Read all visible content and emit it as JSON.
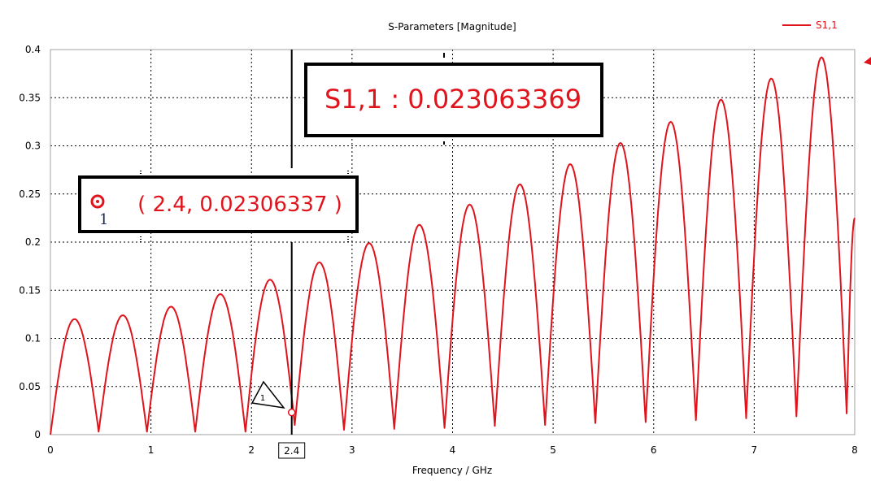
{
  "colors": {
    "series": "#e0141c",
    "axis": "#000000",
    "grid": "#000000",
    "box_border": "#000000",
    "label_text": "#e0141c"
  },
  "chart_data": {
    "type": "line",
    "title": "S-Parameters [Magnitude]",
    "xlabel": "Frequency / GHz",
    "ylabel": "",
    "xlim": [
      0,
      8
    ],
    "ylim": [
      0,
      0.4
    ],
    "xticks": [
      "0",
      "1",
      "2",
      "3",
      "4",
      "5",
      "6",
      "7",
      "8"
    ],
    "yticks": [
      "0",
      "0.05",
      "0.1",
      "0.15",
      "0.2",
      "0.25",
      "0.3",
      "0.35",
      "0.4"
    ],
    "grid": true,
    "legend": {
      "position": "top-right",
      "entries": [
        "S1,1"
      ]
    },
    "series": [
      {
        "name": "S1,1",
        "peaks": [
          {
            "x": 0.25,
            "y": 0.12
          },
          {
            "x": 0.74,
            "y": 0.124
          },
          {
            "x": 1.22,
            "y": 0.133
          },
          {
            "x": 1.71,
            "y": 0.146
          },
          {
            "x": 2.19,
            "y": 0.161
          },
          {
            "x": 2.68,
            "y": 0.179
          },
          {
            "x": 3.17,
            "y": 0.199
          },
          {
            "x": 3.66,
            "y": 0.218
          },
          {
            "x": 4.16,
            "y": 0.239
          },
          {
            "x": 4.66,
            "y": 0.26
          },
          {
            "x": 5.16,
            "y": 0.281
          },
          {
            "x": 5.66,
            "y": 0.303
          },
          {
            "x": 6.16,
            "y": 0.325
          },
          {
            "x": 6.66,
            "y": 0.348
          },
          {
            "x": 7.16,
            "y": 0.37
          },
          {
            "x": 7.66,
            "y": 0.392
          }
        ],
        "nulls": [
          {
            "x": 0.0,
            "y": 0.0
          },
          {
            "x": 0.48,
            "y": 0.003
          },
          {
            "x": 0.96,
            "y": 0.003
          },
          {
            "x": 1.44,
            "y": 0.003
          },
          {
            "x": 1.94,
            "y": 0.003
          },
          {
            "x": 2.43,
            "y": 0.01
          },
          {
            "x": 2.92,
            "y": 0.005
          },
          {
            "x": 3.42,
            "y": 0.006
          },
          {
            "x": 3.92,
            "y": 0.007
          },
          {
            "x": 4.42,
            "y": 0.009
          },
          {
            "x": 4.92,
            "y": 0.01
          },
          {
            "x": 5.42,
            "y": 0.012
          },
          {
            "x": 5.92,
            "y": 0.013
          },
          {
            "x": 6.42,
            "y": 0.015
          },
          {
            "x": 6.92,
            "y": 0.017
          },
          {
            "x": 7.42,
            "y": 0.019
          },
          {
            "x": 7.92,
            "y": 0.022
          }
        ],
        "end": {
          "x": 8.0,
          "y": 0.225
        }
      }
    ],
    "marker": {
      "id": "1",
      "x": 2.4,
      "y": 0.02306337,
      "axis_tag": "2.4",
      "coord_label": "( 2.4, 0.02306337 )",
      "value_label": "S1,1 : 0.023063369"
    }
  }
}
